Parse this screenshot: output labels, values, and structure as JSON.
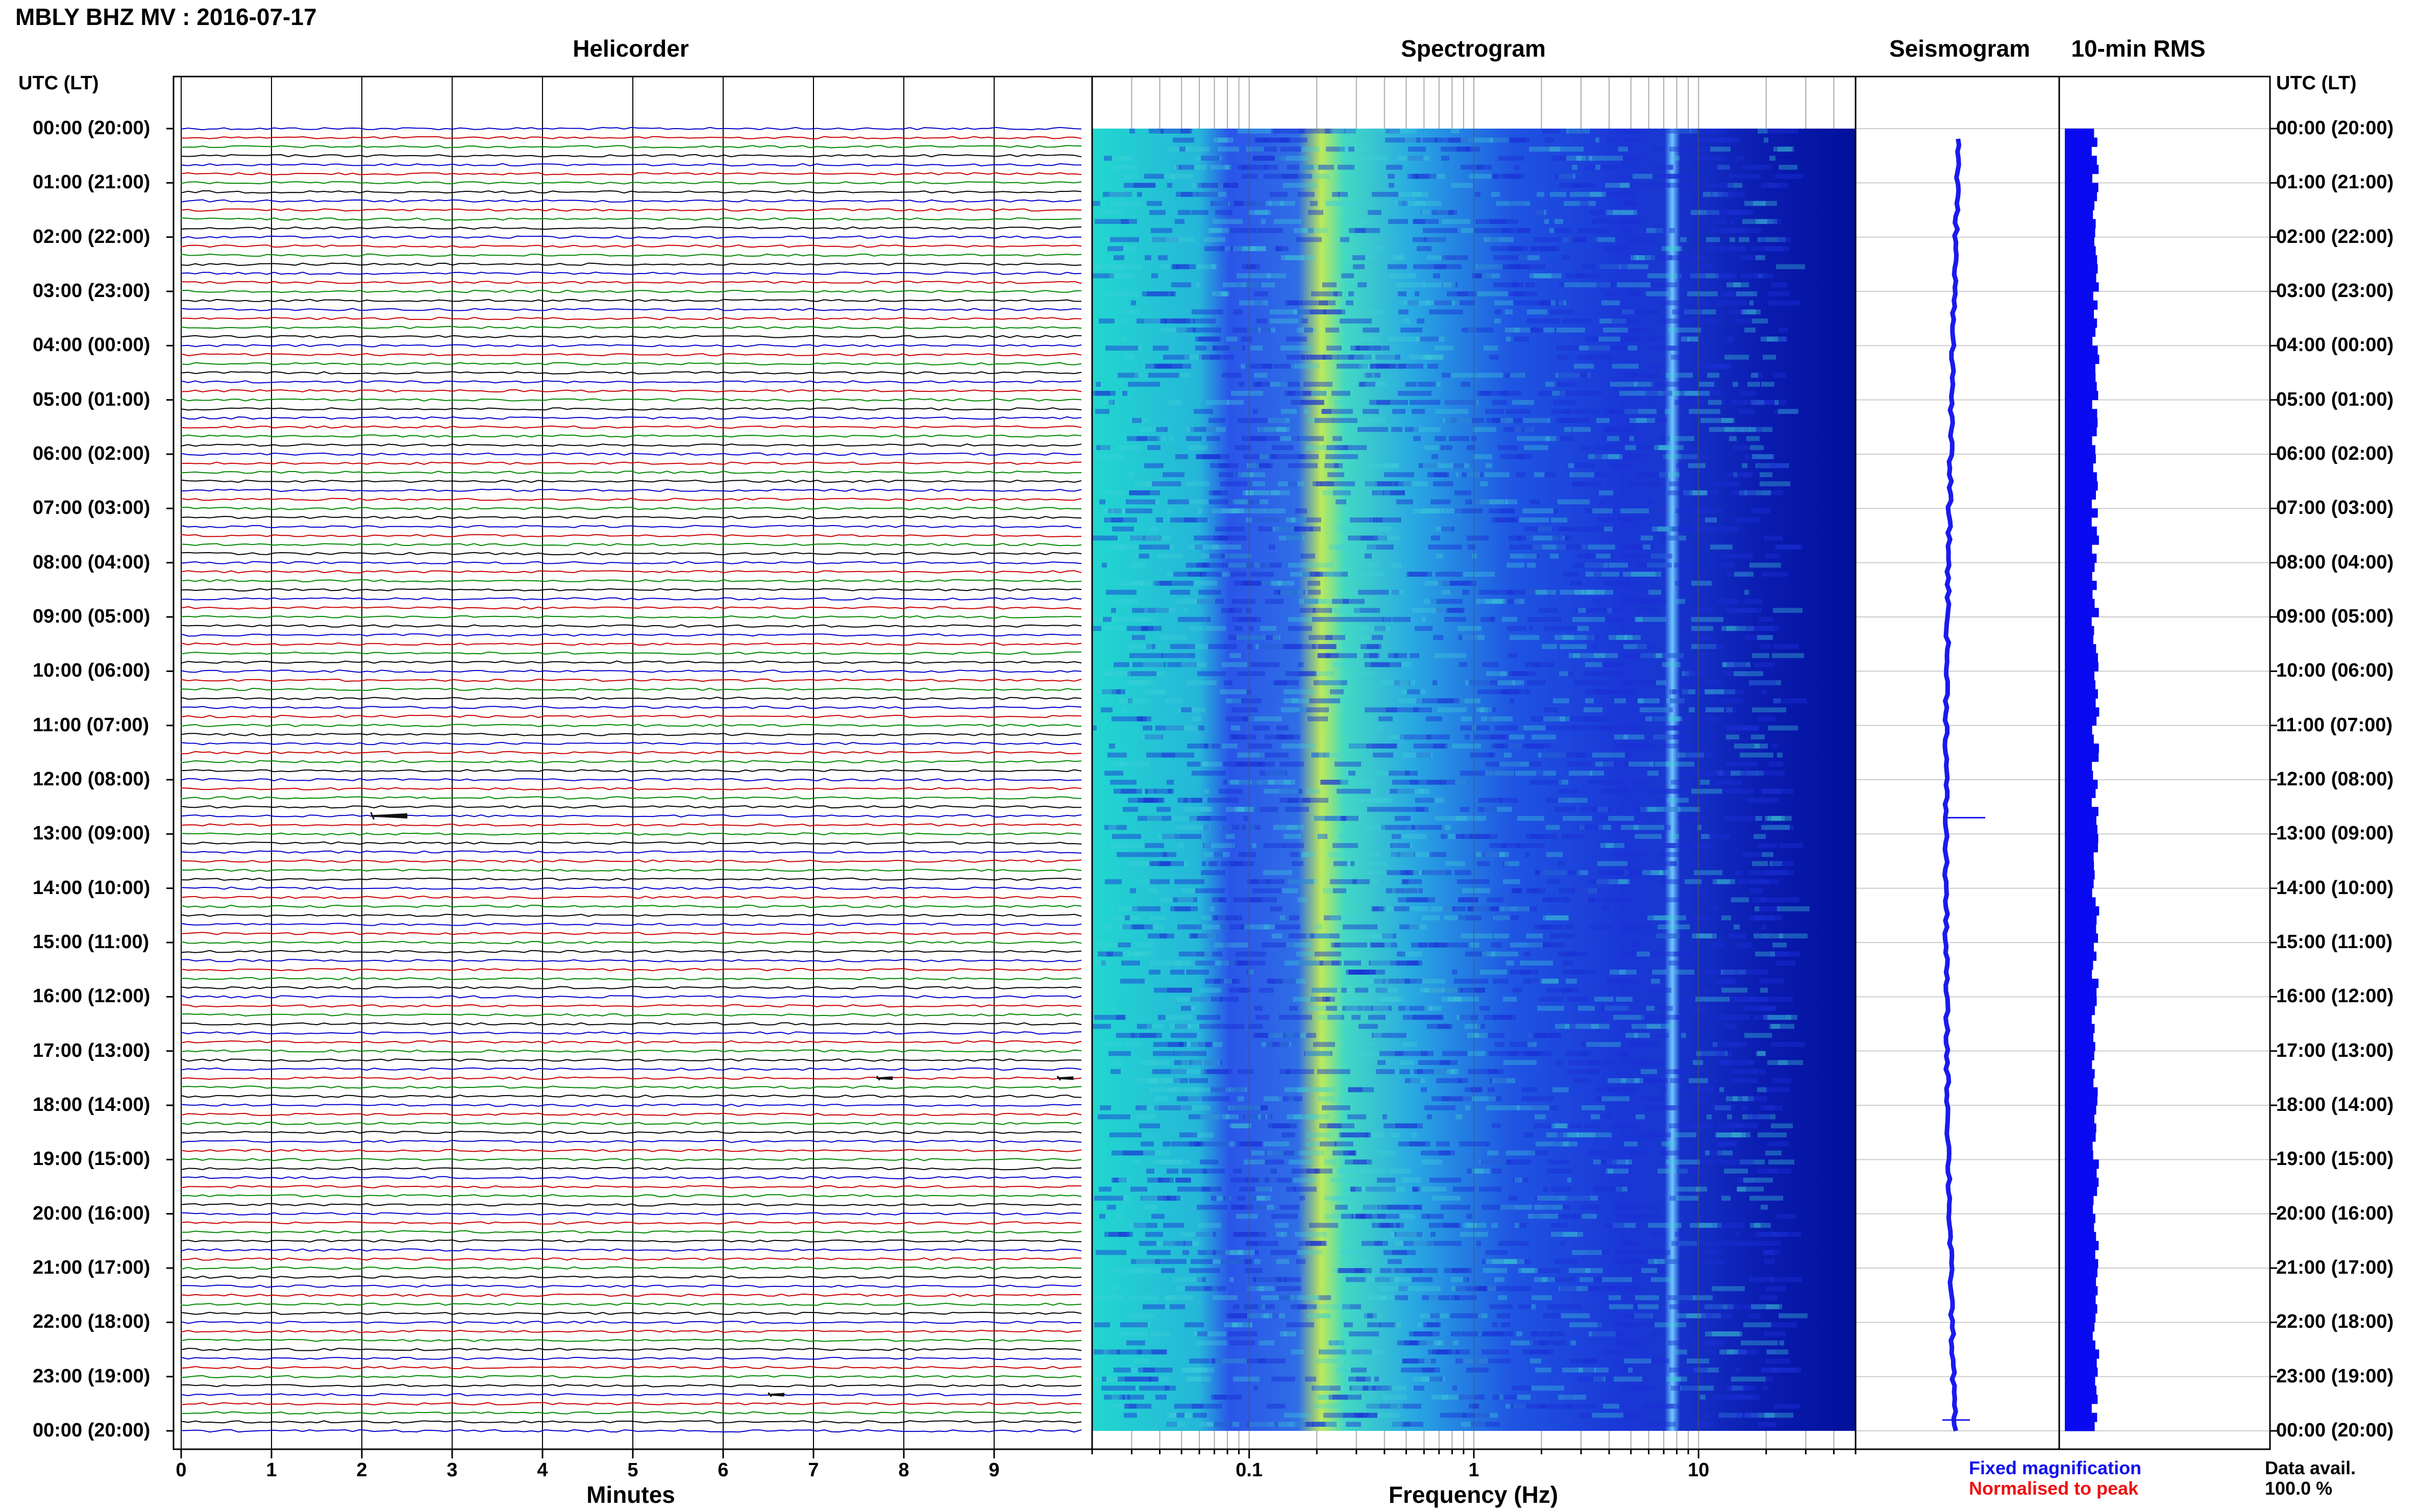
{
  "header": {
    "title": "MBLY BHZ MV : 2016-07-17",
    "utc_left": "UTC (LT)",
    "utc_right": "UTC (LT)"
  },
  "panels": {
    "helicorder": "Helicorder",
    "spectrogram": "Spectrogram",
    "seismogram": "Seismogram",
    "rms": "10-min RMS"
  },
  "time_labels": [
    "00:00 (20:00)",
    "01:00 (21:00)",
    "02:00 (22:00)",
    "03:00 (23:00)",
    "04:00 (00:00)",
    "05:00 (01:00)",
    "06:00 (02:00)",
    "07:00 (03:00)",
    "08:00 (04:00)",
    "09:00 (05:00)",
    "10:00 (06:00)",
    "11:00 (07:00)",
    "12:00 (08:00)",
    "13:00 (09:00)",
    "14:00 (10:00)",
    "15:00 (11:00)",
    "16:00 (12:00)",
    "17:00 (13:00)",
    "18:00 (14:00)",
    "19:00 (15:00)",
    "20:00 (16:00)",
    "21:00 (17:00)",
    "22:00 (18:00)",
    "23:00 (19:00)",
    "00:00 (20:00)"
  ],
  "minutes_axis": {
    "title": "Minutes",
    "ticks": [
      "0",
      "1",
      "2",
      "3",
      "4",
      "5",
      "6",
      "7",
      "8",
      "9"
    ]
  },
  "frequency_axis": {
    "title": "Frequency (Hz)",
    "ticks": [
      "0.1",
      "1",
      "10"
    ]
  },
  "legend": {
    "fixed": "Fixed magnification",
    "normalised": "Normalised to peak",
    "avail_label": "Data avail.",
    "avail_value": "100.0 %"
  },
  "colors": {
    "trace_colors": [
      "#000000",
      "#cc0000",
      "#0000cc",
      "#008800"
    ],
    "seismogram_blue": "#1a1aee",
    "rms_blue": "#0a0af0",
    "spectro_low": "#00008b",
    "spectro_high": "#c8f050"
  },
  "chart_data": [
    {
      "type": "line",
      "name": "helicorder",
      "x_unit": "minutes",
      "xlim": [
        0,
        10
      ],
      "rows_per_hour": 6,
      "rows": 144,
      "events": [
        {
          "minute": 2.1,
          "row": 76,
          "amplitude": "large"
        },
        {
          "minute": 7.7,
          "row": 105,
          "amplitude": "small"
        },
        {
          "minute": 9.7,
          "row": 105,
          "amplitude": "small"
        },
        {
          "minute": 6.5,
          "row": 140,
          "amplitude": "small"
        }
      ]
    },
    {
      "type": "heatmap",
      "name": "spectrogram",
      "x_scale": "log",
      "xlim_hz": [
        0.02,
        50
      ],
      "peak_band_hz": [
        0.18,
        0.35
      ],
      "spectral_line_hz": 8.8
    },
    {
      "type": "line",
      "name": "seismogram",
      "description_hours": [
        0,
        24
      ]
    },
    {
      "type": "bar",
      "name": "10-min RMS",
      "bins": 144,
      "relative_level_range": [
        0.35,
        0.45
      ],
      "peak_hour": 12.9
    }
  ]
}
